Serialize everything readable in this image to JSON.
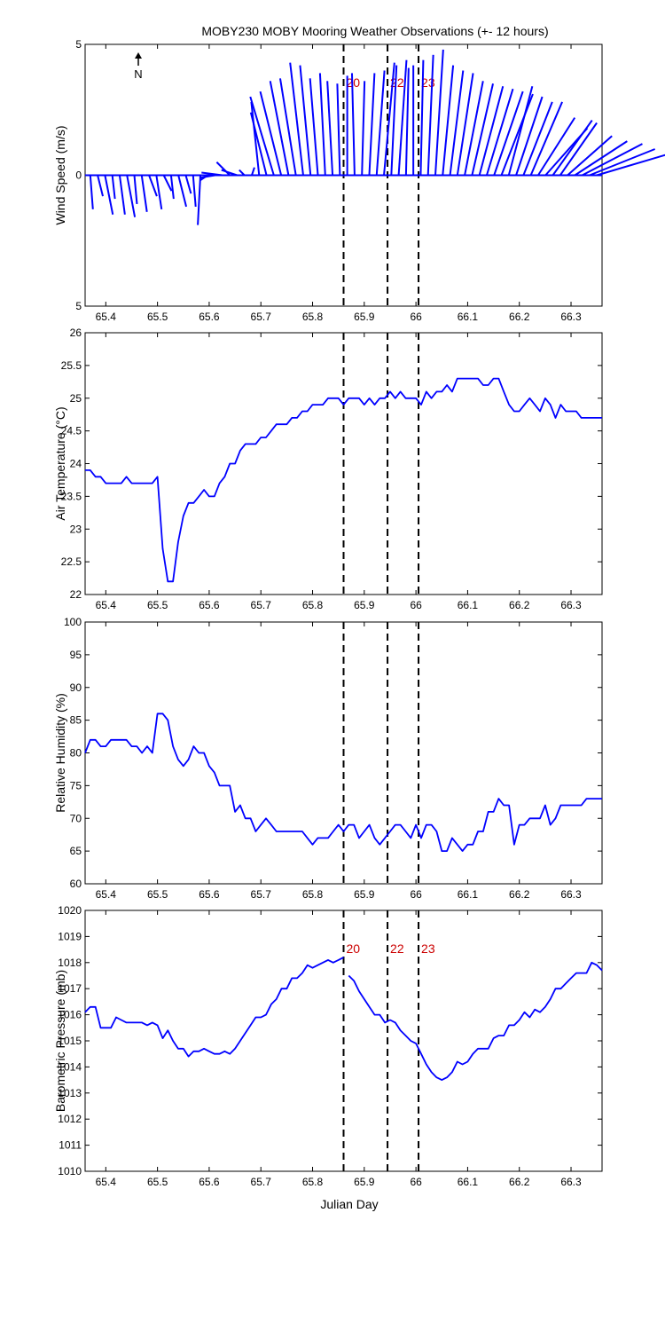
{
  "figure": {
    "title": "MOBY230 MOBY Mooring Weather Observations (+- 12 hours)",
    "xlabel": "Julian Day",
    "north_label": "N",
    "line_color": "#0000ff",
    "event_color": "#cc0000"
  },
  "chart_data": [
    {
      "type": "line",
      "subtype": "wind-vector-stick-plot",
      "panel": "wind",
      "ylabel": "Wind Speed (m/s)",
      "xlim": [
        65.36,
        66.36
      ],
      "ylim": [
        -5,
        5
      ],
      "x_ticks": [
        "65.4",
        "65.5",
        "65.6",
        "65.7",
        "65.8",
        "65.9",
        "66",
        "66.1",
        "66.2",
        "66.3"
      ],
      "y_tick_labels": [
        "5",
        "0",
        "5"
      ],
      "event_lines": [
        65.86,
        65.945,
        66.005
      ],
      "event_labels": [
        "20",
        "22",
        "23"
      ],
      "series": [
        {
          "u": [
            0.1,
            0.2,
            0.3,
            0.1,
            0.2,
            0.3,
            0.1,
            0.2,
            0.3,
            0.2,
            0.3,
            0.1,
            0.3,
            0.2,
            0.1,
            -0.1,
            -0.3,
            -0.6,
            -0.8,
            -0.5,
            -0.6,
            -0.2,
            0.1,
            -0.3,
            -0.6,
            -0.9,
            -0.8,
            -0.7,
            -0.6,
            -0.5,
            -0.4,
            -0.3,
            -0.2,
            -0.2,
            -0.1,
            0,
            -0.1,
            0.1,
            0.2,
            0.3,
            0.4,
            0.2,
            0.3,
            0.1,
            0,
            0.1,
            0.2,
            0.3,
            0.4,
            0.5,
            0.6,
            0.7,
            0.8,
            0.9,
            1.0,
            1.1,
            1.2,
            0.9,
            1.0,
            1.1,
            1.2,
            1.4,
            1.6,
            1.5,
            1.4,
            1.7,
            2.0,
            2.3,
            2.5,
            2.7
          ],
          "v": [
            -1.3,
            -0.8,
            -1.5,
            -0.9,
            -1.5,
            -1.6,
            -1.1,
            -1.4,
            -0.8,
            -1.3,
            -0.6,
            -0.9,
            -1.2,
            -0.7,
            -1.2,
            -1.9,
            -0.2,
            -0.1,
            0.1,
            0.5,
            0.2,
            0.2,
            0.3,
            2.8,
            2.4,
            3.0,
            3.2,
            3.6,
            3.7,
            4.3,
            4.2,
            3.7,
            3.9,
            3.6,
            3.5,
            3.8,
            3.9,
            3.6,
            3.9,
            4.0,
            4.3,
            4.2,
            4.4,
            4.1,
            4.2,
            4.4,
            4.6,
            4.8,
            4.2,
            4.0,
            3.9,
            3.6,
            3.5,
            3.4,
            3.3,
            3.2,
            3.1,
            3.4,
            3.0,
            2.8,
            2.8,
            2.2,
            1.8,
            2.1,
            2.0,
            1.5,
            1.3,
            1.2,
            1.0,
            0.8
          ]
        }
      ]
    },
    {
      "type": "line",
      "panel": "air-temperature",
      "ylabel": "Air Temperature (°C)",
      "xlim": [
        65.36,
        66.36
      ],
      "ylim": [
        22,
        26
      ],
      "x_ticks": [
        "65.4",
        "65.5",
        "65.6",
        "65.7",
        "65.8",
        "65.9",
        "66",
        "66.1",
        "66.2",
        "66.3"
      ],
      "y_ticks": [
        "22",
        "22.5",
        "23",
        "23.5",
        "24",
        "24.5",
        "25",
        "25.5",
        "26"
      ],
      "event_lines": [
        65.86,
        65.945,
        66.005
      ],
      "series": [
        {
          "x": [
            65.36,
            65.37,
            65.38,
            65.39,
            65.4,
            65.41,
            65.42,
            65.43,
            65.44,
            65.45,
            65.46,
            65.47,
            65.48,
            65.49,
            65.5,
            65.51,
            65.52,
            65.53,
            65.54,
            65.55,
            65.56,
            65.57,
            65.58,
            65.59,
            65.6,
            65.61,
            65.62,
            65.63,
            65.64,
            65.65,
            65.66,
            65.67,
            65.68,
            65.69,
            65.7,
            65.71,
            65.72,
            65.73,
            65.74,
            65.75,
            65.76,
            65.77,
            65.78,
            65.79,
            65.8,
            65.81,
            65.82,
            65.83,
            65.84,
            65.85,
            65.86,
            65.87,
            65.88,
            65.89,
            65.9,
            65.91,
            65.92,
            65.93,
            65.94,
            65.95,
            65.96,
            65.97,
            65.98,
            65.99,
            66.0,
            66.01,
            66.02,
            66.03,
            66.04,
            66.05,
            66.06,
            66.07,
            66.08,
            66.09,
            66.1,
            66.11,
            66.12,
            66.13,
            66.14,
            66.15,
            66.16,
            66.17,
            66.18,
            66.19,
            66.2,
            66.21,
            66.22,
            66.23,
            66.24,
            66.25,
            66.26,
            66.27,
            66.28,
            66.29,
            66.3,
            66.31,
            66.32,
            66.33,
            66.34,
            66.35,
            66.36
          ],
          "y": [
            23.9,
            23.9,
            23.8,
            23.8,
            23.7,
            23.7,
            23.7,
            23.7,
            23.8,
            23.7,
            23.7,
            23.7,
            23.7,
            23.7,
            23.8,
            22.7,
            22.2,
            22.2,
            22.8,
            23.2,
            23.4,
            23.4,
            23.5,
            23.6,
            23.5,
            23.5,
            23.7,
            23.8,
            24.0,
            24.0,
            24.2,
            24.3,
            24.3,
            24.3,
            24.4,
            24.4,
            24.5,
            24.6,
            24.6,
            24.6,
            24.7,
            24.7,
            24.8,
            24.8,
            24.9,
            24.9,
            24.9,
            25.0,
            25.0,
            25.0,
            24.9,
            25.0,
            25.0,
            25.0,
            24.9,
            25.0,
            24.9,
            25.0,
            25.0,
            25.1,
            25.0,
            25.1,
            25.0,
            25.0,
            25.0,
            24.9,
            25.1,
            25.0,
            25.1,
            25.1,
            25.2,
            25.1,
            25.3,
            25.3,
            25.3,
            25.3,
            25.3,
            25.2,
            25.2,
            25.3,
            25.3,
            25.1,
            24.9,
            24.8,
            24.8,
            24.9,
            25.0,
            24.9,
            24.8,
            25.0,
            24.9,
            24.7,
            24.9,
            24.8,
            24.8,
            24.8,
            24.7,
            24.7,
            24.7,
            24.7,
            24.7
          ]
        }
      ]
    },
    {
      "type": "line",
      "panel": "relative-humidity",
      "ylabel": "Relative Humidity (%)",
      "xlim": [
        65.36,
        66.36
      ],
      "ylim": [
        60,
        100
      ],
      "x_ticks": [
        "65.4",
        "65.5",
        "65.6",
        "65.7",
        "65.8",
        "65.9",
        "66",
        "66.1",
        "66.2",
        "66.3"
      ],
      "y_ticks": [
        "60",
        "65",
        "70",
        "75",
        "80",
        "85",
        "90",
        "95",
        "100"
      ],
      "event_lines": [
        65.86,
        65.945,
        66.005
      ],
      "series": [
        {
          "x": [
            65.36,
            65.37,
            65.38,
            65.39,
            65.4,
            65.41,
            65.42,
            65.43,
            65.44,
            65.45,
            65.46,
            65.47,
            65.48,
            65.49,
            65.5,
            65.51,
            65.52,
            65.53,
            65.54,
            65.55,
            65.56,
            65.57,
            65.58,
            65.59,
            65.6,
            65.61,
            65.62,
            65.63,
            65.64,
            65.65,
            65.66,
            65.67,
            65.68,
            65.69,
            65.7,
            65.71,
            65.72,
            65.73,
            65.74,
            65.75,
            65.76,
            65.77,
            65.78,
            65.79,
            65.8,
            65.81,
            65.82,
            65.83,
            65.84,
            65.85,
            65.86,
            65.87,
            65.88,
            65.89,
            65.9,
            65.91,
            65.92,
            65.93,
            65.94,
            65.95,
            65.96,
            65.97,
            65.98,
            65.99,
            66.0,
            66.01,
            66.02,
            66.03,
            66.04,
            66.05,
            66.06,
            66.07,
            66.08,
            66.09,
            66.1,
            66.11,
            66.12,
            66.13,
            66.14,
            66.15,
            66.16,
            66.17,
            66.18,
            66.19,
            66.2,
            66.21,
            66.22,
            66.23,
            66.24,
            66.25,
            66.26,
            66.27,
            66.28,
            66.29,
            66.3,
            66.31,
            66.32,
            66.33,
            66.34,
            66.35,
            66.36
          ],
          "y": [
            80,
            82,
            82,
            81,
            81,
            82,
            82,
            82,
            82,
            81,
            81,
            80,
            81,
            80,
            86,
            86,
            85,
            81,
            79,
            78,
            79,
            81,
            80,
            80,
            78,
            77,
            75,
            75,
            75,
            71,
            72,
            70,
            70,
            68,
            69,
            70,
            69,
            68,
            68,
            68,
            68,
            68,
            68,
            67,
            66,
            67,
            67,
            67,
            68,
            69,
            68,
            69,
            69,
            67,
            68,
            69,
            67,
            66,
            67,
            68,
            69,
            69,
            68,
            67,
            69,
            67,
            69,
            69,
            68,
            65,
            65,
            67,
            66,
            65,
            66,
            66,
            68,
            68,
            71,
            71,
            73,
            72,
            72,
            66,
            69,
            69,
            70,
            70,
            70,
            72,
            69,
            70,
            72,
            72,
            72,
            72,
            72,
            73,
            73,
            73,
            73
          ]
        }
      ]
    },
    {
      "type": "line",
      "panel": "barometric-pressure",
      "ylabel": "Barometric Pressure (mb)",
      "xlim": [
        65.36,
        66.36
      ],
      "ylim": [
        1010,
        1020
      ],
      "x_ticks": [
        "65.4",
        "65.5",
        "65.6",
        "65.7",
        "65.8",
        "65.9",
        "66",
        "66.1",
        "66.2",
        "66.3"
      ],
      "y_ticks": [
        "1010",
        "1011",
        "1012",
        "1013",
        "1014",
        "1015",
        "1016",
        "1017",
        "1018",
        "1019",
        "1020"
      ],
      "event_lines": [
        65.86,
        65.945,
        66.005
      ],
      "event_labels": [
        "20",
        "22",
        "23"
      ],
      "series": [
        {
          "x": [
            65.36,
            65.37,
            65.38,
            65.39,
            65.4,
            65.41,
            65.42,
            65.43,
            65.44,
            65.45,
            65.46,
            65.47,
            65.48,
            65.49,
            65.5,
            65.51,
            65.52,
            65.53,
            65.54,
            65.55,
            65.56,
            65.57,
            65.58,
            65.59,
            65.6,
            65.61,
            65.62,
            65.63,
            65.64,
            65.65,
            65.66,
            65.67,
            65.68,
            65.69,
            65.7,
            65.71,
            65.72,
            65.73,
            65.74,
            65.75,
            65.76,
            65.77,
            65.78,
            65.79,
            65.8,
            65.81,
            65.82,
            65.83,
            65.84,
            65.85,
            65.86
          ],
          "y": [
            1016.1,
            1016.3,
            1016.3,
            1015.5,
            1015.5,
            1015.5,
            1015.9,
            1015.8,
            1015.7,
            1015.7,
            1015.7,
            1015.7,
            1015.6,
            1015.7,
            1015.6,
            1015.1,
            1015.4,
            1015.0,
            1014.7,
            1014.7,
            1014.4,
            1014.6,
            1014.6,
            1014.7,
            1014.6,
            1014.5,
            1014.5,
            1014.6,
            1014.5,
            1014.7,
            1015.0,
            1015.3,
            1015.6,
            1015.9,
            1015.9,
            1016.0,
            1016.4,
            1016.6,
            1017.0,
            1017.0,
            1017.4,
            1017.4,
            1017.6,
            1017.9,
            1017.8,
            1017.9,
            1018.0,
            1018.1,
            1018.0,
            1018.1,
            1018.2
          ]
        },
        {
          "x": [
            65.87,
            65.88,
            65.89,
            65.9,
            65.91,
            65.92,
            65.93,
            65.94,
            65.95,
            65.96,
            65.97,
            65.98,
            65.99,
            66.0,
            66.01,
            66.02,
            66.03,
            66.04,
            66.05,
            66.06,
            66.07,
            66.08,
            66.09,
            66.1,
            66.11,
            66.12,
            66.13,
            66.14,
            66.15,
            66.16,
            66.17,
            66.18,
            66.19,
            66.2,
            66.21,
            66.22,
            66.23,
            66.24,
            66.25,
            66.26,
            66.27,
            66.28,
            66.29,
            66.3,
            66.31,
            66.32,
            66.33,
            66.34,
            66.35,
            66.36
          ],
          "y": [
            1017.5,
            1017.3,
            1016.9,
            1016.6,
            1016.3,
            1016.0,
            1016.0,
            1015.7,
            1015.8,
            1015.7,
            1015.4,
            1015.2,
            1015.0,
            1014.9,
            1014.5,
            1014.1,
            1013.8,
            1013.6,
            1013.5,
            1013.6,
            1013.8,
            1014.2,
            1014.1,
            1014.2,
            1014.5,
            1014.7,
            1014.7,
            1014.7,
            1015.1,
            1015.2,
            1015.2,
            1015.6,
            1015.6,
            1015.8,
            1016.1,
            1015.9,
            1016.2,
            1016.1,
            1016.3,
            1016.6,
            1017.0,
            1017.0,
            1017.2,
            1017.4,
            1017.6,
            1017.6,
            1017.6,
            1018.0,
            1017.9,
            1017.7
          ]
        }
      ]
    }
  ]
}
